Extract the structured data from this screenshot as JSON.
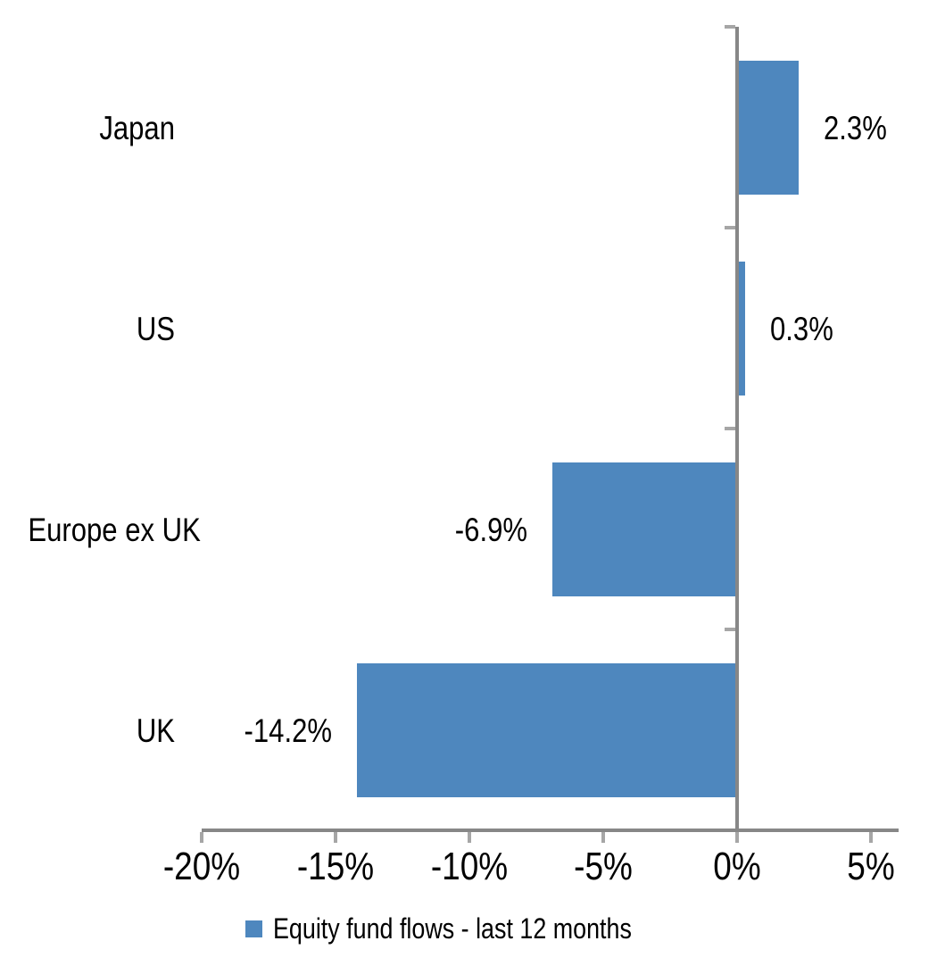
{
  "chart_data": {
    "type": "bar",
    "orientation": "horizontal",
    "title": "",
    "categories": [
      "Japan",
      "US",
      "Europe ex UK",
      "UK"
    ],
    "series": [
      {
        "name": "Equity fund flows - last 12 months",
        "values": [
          2.3,
          0.3,
          -6.9,
          -14.2
        ],
        "value_labels": [
          "2.3%",
          "0.3%",
          "-6.9%",
          "-14.2%"
        ]
      }
    ],
    "x_ticks": {
      "values": [
        -20,
        -15,
        -10,
        -5,
        0,
        5
      ],
      "labels": [
        "-20%",
        "-15%",
        "-10%",
        "-5%",
        "0%",
        "5%"
      ]
    },
    "xlim": [
      -20,
      6
    ],
    "grid": "off",
    "legend_position": "bottom-center",
    "legend": "Equity fund flows - last 12 months",
    "colors": {
      "bar": "#4E87BE",
      "axis": "#878787",
      "tick": "#A6A6A6",
      "text": "#000000",
      "background": "#FFFFFF"
    }
  }
}
